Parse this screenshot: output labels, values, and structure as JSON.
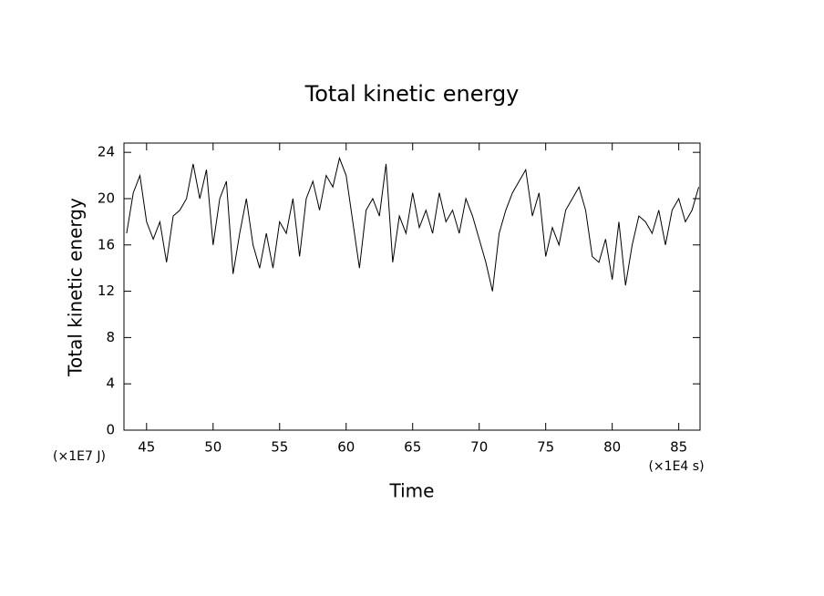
{
  "chart_data": {
    "type": "line",
    "title": "Total kinetic energy",
    "x_label": "Time",
    "y_label": "Total kinetic energy",
    "x_unit": "(×1E4 s)",
    "y_unit": "(×1E7 J)",
    "xlim": [
      43.3,
      86.6
    ],
    "ylim": [
      0,
      24.8
    ],
    "xticks": [
      45,
      50,
      55,
      60,
      65,
      70,
      75,
      80,
      85
    ],
    "yticks": [
      0,
      4,
      8,
      12,
      16,
      20,
      24
    ],
    "x": [
      43.5,
      44,
      44.5,
      45,
      45.5,
      46,
      46.5,
      47,
      47.5,
      48,
      48.5,
      49,
      49.5,
      50,
      50.5,
      51,
      51.5,
      52,
      52.5,
      53,
      53.5,
      54,
      54.5,
      55,
      55.5,
      56,
      56.5,
      57,
      57.5,
      58,
      58.5,
      59,
      59.5,
      60,
      60.5,
      61,
      61.5,
      62,
      62.5,
      63,
      63.5,
      64,
      64.5,
      65,
      65.5,
      66,
      66.5,
      67,
      67.5,
      68,
      68.5,
      69,
      69.5,
      70,
      70.5,
      71,
      71.5,
      72,
      72.5,
      73,
      73.5,
      74,
      74.5,
      75,
      75.5,
      76,
      76.5,
      77,
      77.5,
      78,
      78.5,
      79,
      79.5,
      80,
      80.5,
      81,
      81.5,
      82,
      82.5,
      83,
      83.5,
      84,
      84.5,
      85,
      85.5,
      86,
      86.5
    ],
    "series": [
      {
        "color": "#000000",
        "values": [
          17,
          20.5,
          22,
          18,
          16.5,
          18,
          14.5,
          18.5,
          19,
          20,
          23,
          20,
          22.5,
          16,
          20,
          21.5,
          13.5,
          17,
          20,
          16,
          14,
          17,
          14,
          18,
          17,
          20,
          15,
          20,
          21.5,
          19,
          22,
          21,
          23.5,
          22,
          18,
          14,
          19,
          20,
          18.5,
          23,
          14.5,
          18.5,
          17,
          20.5,
          17.5,
          19,
          17,
          20.5,
          18,
          19,
          17,
          20,
          18.5,
          16.5,
          14.5,
          12,
          17,
          19,
          20.5,
          21.5,
          22.5,
          18.5,
          20.5,
          15,
          17.5,
          16,
          19,
          20,
          21,
          19,
          15,
          14.5,
          16.5,
          13,
          18,
          12.5,
          16,
          18.5,
          18,
          17,
          19,
          16,
          19,
          20,
          18,
          19,
          21
        ]
      }
    ]
  }
}
